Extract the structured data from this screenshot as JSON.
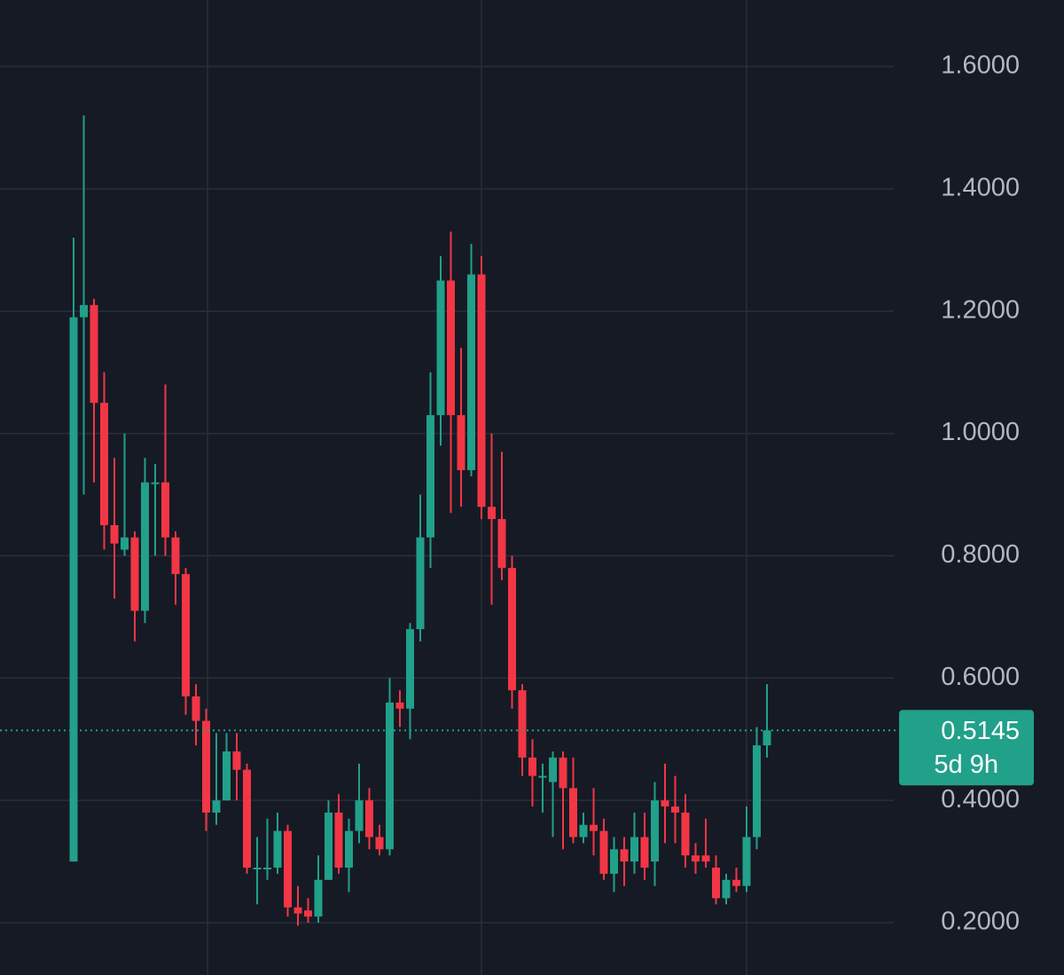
{
  "chart_data": {
    "type": "candlestick",
    "open": [
      0.3,
      1.19,
      1.21,
      1.05,
      0.85,
      0.81,
      0.83,
      0.71,
      0.92,
      0.92,
      0.83,
      0.77,
      0.57,
      0.53,
      0.38,
      0.4,
      0.48,
      0.45,
      0.29,
      0.29,
      0.29,
      0.35,
      0.225,
      0.22,
      0.21,
      0.27,
      0.38,
      0.29,
      0.35,
      0.4,
      0.34,
      0.32,
      0.56,
      0.55,
      0.68,
      0.83,
      1.03,
      1.25,
      1.03,
      0.94,
      1.26,
      0.88,
      0.86,
      0.78,
      0.58,
      0.47,
      0.44,
      0.43,
      0.47,
      0.42,
      0.34,
      0.36,
      0.35,
      0.28,
      0.32,
      0.3,
      0.34,
      0.3,
      0.4,
      0.39,
      0.38,
      0.31,
      0.31,
      0.29,
      0.24,
      0.27,
      0.26,
      0.34,
      0.49
    ],
    "high": [
      1.32,
      1.52,
      1.22,
      1.1,
      0.96,
      1.0,
      0.84,
      0.96,
      0.95,
      1.08,
      0.84,
      0.78,
      0.59,
      0.55,
      0.51,
      0.51,
      0.51,
      0.46,
      0.34,
      0.37,
      0.38,
      0.36,
      0.26,
      0.24,
      0.31,
      0.4,
      0.41,
      0.37,
      0.46,
      0.42,
      0.36,
      0.6,
      0.58,
      0.69,
      0.9,
      1.1,
      1.29,
      1.33,
      1.14,
      1.31,
      1.29,
      1.0,
      0.97,
      0.8,
      0.59,
      0.5,
      0.46,
      0.48,
      0.48,
      0.47,
      0.38,
      0.42,
      0.37,
      0.34,
      0.34,
      0.38,
      0.38,
      0.43,
      0.46,
      0.44,
      0.41,
      0.33,
      0.37,
      0.31,
      0.28,
      0.29,
      0.39,
      0.52,
      0.59
    ],
    "low": [
      0.3,
      0.9,
      0.92,
      0.81,
      0.73,
      0.8,
      0.66,
      0.69,
      0.8,
      0.8,
      0.72,
      0.54,
      0.49,
      0.35,
      0.36,
      0.4,
      0.4,
      0.28,
      0.23,
      0.27,
      0.28,
      0.21,
      0.195,
      0.2,
      0.2,
      0.27,
      0.28,
      0.25,
      0.33,
      0.32,
      0.31,
      0.31,
      0.52,
      0.5,
      0.66,
      0.78,
      0.98,
      0.87,
      0.88,
      0.93,
      0.86,
      0.72,
      0.76,
      0.55,
      0.44,
      0.39,
      0.38,
      0.34,
      0.32,
      0.33,
      0.33,
      0.31,
      0.27,
      0.25,
      0.26,
      0.28,
      0.27,
      0.26,
      0.33,
      0.33,
      0.29,
      0.28,
      0.29,
      0.23,
      0.23,
      0.25,
      0.25,
      0.32,
      0.47
    ],
    "close": [
      1.19,
      1.21,
      1.05,
      0.85,
      0.82,
      0.83,
      0.71,
      0.92,
      0.92,
      0.83,
      0.77,
      0.57,
      0.53,
      0.38,
      0.4,
      0.48,
      0.45,
      0.29,
      0.29,
      0.29,
      0.35,
      0.225,
      0.215,
      0.21,
      0.27,
      0.38,
      0.29,
      0.35,
      0.4,
      0.34,
      0.32,
      0.56,
      0.55,
      0.68,
      0.83,
      1.03,
      1.25,
      1.03,
      0.94,
      1.26,
      0.88,
      0.86,
      0.78,
      0.58,
      0.47,
      0.44,
      0.44,
      0.47,
      0.42,
      0.34,
      0.36,
      0.35,
      0.28,
      0.32,
      0.3,
      0.34,
      0.29,
      0.4,
      0.39,
      0.38,
      0.31,
      0.3,
      0.3,
      0.24,
      0.27,
      0.26,
      0.34,
      0.49,
      0.5145
    ],
    "up_color": "#21a08a",
    "down_color": "#f23645",
    "ylim": [
      0.15,
      1.7
    ],
    "yticks": [
      {
        "value": 0.2,
        "label": "0.2000"
      },
      {
        "value": 0.4,
        "label": "0.4000"
      },
      {
        "value": 0.6,
        "label": "0.6000"
      },
      {
        "value": 0.8,
        "label": "0.8000"
      },
      {
        "value": 1.0,
        "label": "1.0000"
      },
      {
        "value": 1.2,
        "label": "1.2000"
      },
      {
        "value": 1.4,
        "label": "1.4000"
      },
      {
        "value": 1.6,
        "label": "1.6000"
      }
    ],
    "grid": true,
    "countdown": "5d 9h"
  }
}
